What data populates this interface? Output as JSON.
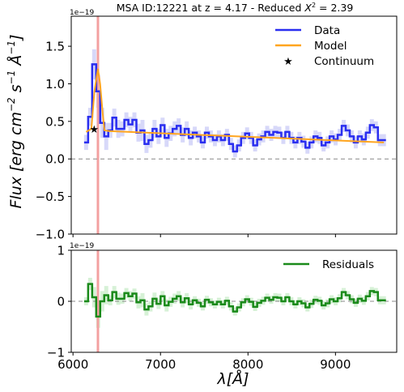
{
  "chart_data": [
    {
      "type": "line",
      "panel": "main",
      "title": "MSA ID:12221 at z = 4.17 - Reduced χ² = 2.39",
      "title_parts": {
        "prefix": "MSA ID:12221 at z = 4.17 - Reduced ",
        "symbol": "X",
        "sup": "2",
        "suffix": " = 2.39"
      },
      "offset_text": {
        "base": "1e",
        "exp": "−19"
      },
      "ylabel": {
        "main": "Flux [erg cm",
        "exp1": "−2",
        "mid": " s",
        "exp2": "−1",
        "mid2": " Å",
        "exp3": "−1",
        "end": "]"
      },
      "xlim": [
        5980,
        9700
      ],
      "ylim": [
        -1.0,
        1.9
      ],
      "yticks": [
        -1.0,
        -0.5,
        0.0,
        0.5,
        1.0,
        1.5
      ],
      "ytick_labels": [
        "−1.0",
        "−0.5",
        "0.0",
        "0.5",
        "1.0",
        "1.5"
      ],
      "legend": [
        "Data",
        "Model",
        "Continuum"
      ],
      "legend_position": "top-right",
      "vline_x": 6285,
      "hline_y": 0.0,
      "colors": {
        "data": "#2a2ef0",
        "error": "#c9cbf7",
        "model": "#ffa51f",
        "vline": "#f3a0a0",
        "hline": "#888888"
      },
      "series": [
        {
          "name": "Data",
          "style": "step",
          "x": [
            6150,
            6196,
            6242,
            6288,
            6334,
            6380,
            6426,
            6472,
            6518,
            6564,
            6610,
            6656,
            6702,
            6748,
            6794,
            6840,
            6886,
            6932,
            6978,
            7024,
            7070,
            7116,
            7162,
            7208,
            7254,
            7300,
            7346,
            7392,
            7438,
            7484,
            7530,
            7576,
            7622,
            7668,
            7714,
            7760,
            7806,
            7852,
            7898,
            7944,
            7990,
            8036,
            8082,
            8128,
            8174,
            8220,
            8266,
            8312,
            8358,
            8404,
            8450,
            8496,
            8542,
            8588,
            8634,
            8680,
            8726,
            8772,
            8818,
            8864,
            8910,
            8956,
            9002,
            9048,
            9094,
            9140,
            9186,
            9232,
            9278,
            9324,
            9370,
            9416,
            9462,
            9508,
            9554
          ],
          "values": [
            0.22,
            0.56,
            1.26,
            0.9,
            0.48,
            0.3,
            0.38,
            0.55,
            0.4,
            0.4,
            0.52,
            0.46,
            0.52,
            0.35,
            0.38,
            0.2,
            0.25,
            0.4,
            0.3,
            0.45,
            0.28,
            0.34,
            0.4,
            0.44,
            0.32,
            0.4,
            0.28,
            0.35,
            0.3,
            0.22,
            0.35,
            0.3,
            0.25,
            0.3,
            0.25,
            0.32,
            0.2,
            0.1,
            0.18,
            0.28,
            0.34,
            0.28,
            0.18,
            0.26,
            0.3,
            0.36,
            0.32,
            0.36,
            0.35,
            0.28,
            0.36,
            0.28,
            0.22,
            0.28,
            0.23,
            0.15,
            0.22,
            0.3,
            0.28,
            0.18,
            0.22,
            0.3,
            0.26,
            0.32,
            0.44,
            0.38,
            0.3,
            0.22,
            0.3,
            0.26,
            0.35,
            0.45,
            0.42,
            0.25,
            0.25
          ]
        },
        {
          "name": "Model",
          "style": "line",
          "x": [
            6150,
            6210,
            6245,
            6285,
            6310,
            6340,
            6360,
            6420,
            9554
          ],
          "values": [
            0.36,
            0.4,
            0.9,
            1.2,
            1.0,
            0.6,
            0.38,
            0.37,
            0.22
          ]
        },
        {
          "name": "Continuum",
          "style": "marker",
          "marker": "star",
          "x": [
            6242
          ],
          "values": [
            0.4
          ]
        }
      ],
      "error_band": {
        "name": "Data uncertainty",
        "offsets": [
          0.1,
          0.12,
          0.2,
          0.22,
          0.2,
          0.18,
          0.1,
          0.12,
          0.12,
          0.1,
          0.1,
          0.1,
          0.1,
          0.12,
          0.14,
          0.12,
          0.1,
          0.12,
          0.1,
          0.1,
          0.12,
          0.1,
          0.1,
          0.1,
          0.1,
          0.1,
          0.1,
          0.08,
          0.08,
          0.08,
          0.08,
          0.08,
          0.08,
          0.08,
          0.08,
          0.08,
          0.08,
          0.08,
          0.08,
          0.08,
          0.08,
          0.08,
          0.08,
          0.08,
          0.08,
          0.08,
          0.08,
          0.08,
          0.08,
          0.08,
          0.08,
          0.08,
          0.08,
          0.08,
          0.08,
          0.08,
          0.08,
          0.08,
          0.08,
          0.08,
          0.08,
          0.08,
          0.08,
          0.08,
          0.08,
          0.08,
          0.08,
          0.08,
          0.08,
          0.08,
          0.08,
          0.08,
          0.08,
          0.08,
          0.08
        ]
      }
    },
    {
      "type": "line",
      "panel": "residuals",
      "offset_text": {
        "base": "1e",
        "exp": "−19"
      },
      "xlabel": {
        "symbol": "λ",
        "unit": "[Å]"
      },
      "xlim": [
        5980,
        9700
      ],
      "ylim": [
        -1.0,
        1.0
      ],
      "xticks": [
        6000,
        7000,
        8000,
        9000
      ],
      "xtick_labels": [
        "6000",
        "7000",
        "8000",
        "9000"
      ],
      "yticks": [
        -1.0,
        0.0,
        1.0
      ],
      "ytick_labels": [
        "−1",
        "0",
        "1"
      ],
      "legend": [
        "Residuals"
      ],
      "legend_position": "top-right",
      "vline_x": 6285,
      "hline_y": 0.0,
      "colors": {
        "residuals": "#1a8a1a",
        "error": "#c8ecc8",
        "vline": "#f3a0a0",
        "hline": "#888888"
      },
      "series": [
        {
          "name": "Residuals",
          "style": "step",
          "x": [
            6150,
            6196,
            6242,
            6288,
            6334,
            6380,
            6426,
            6472,
            6518,
            6564,
            6610,
            6656,
            6702,
            6748,
            6794,
            6840,
            6886,
            6932,
            6978,
            7024,
            7070,
            7116,
            7162,
            7208,
            7254,
            7300,
            7346,
            7392,
            7438,
            7484,
            7530,
            7576,
            7622,
            7668,
            7714,
            7760,
            7806,
            7852,
            7898,
            7944,
            7990,
            8036,
            8082,
            8128,
            8174,
            8220,
            8266,
            8312,
            8358,
            8404,
            8450,
            8496,
            8542,
            8588,
            8634,
            8680,
            8726,
            8772,
            8818,
            8864,
            8910,
            8956,
            9002,
            9048,
            9094,
            9140,
            9186,
            9232,
            9278,
            9324,
            9370,
            9416,
            9462,
            9508,
            9554
          ],
          "values": [
            0.0,
            0.34,
            0.08,
            -0.3,
            0.0,
            0.12,
            0.02,
            0.18,
            0.05,
            0.05,
            0.16,
            0.1,
            0.15,
            -0.02,
            0.02,
            -0.16,
            -0.1,
            0.05,
            -0.05,
            0.1,
            -0.08,
            -0.01,
            0.05,
            0.1,
            -0.02,
            0.06,
            -0.06,
            0.02,
            -0.03,
            -0.1,
            0.03,
            -0.02,
            -0.06,
            -0.01,
            -0.06,
            0.01,
            -0.1,
            -0.2,
            -0.12,
            -0.02,
            0.04,
            -0.01,
            -0.11,
            -0.03,
            0.01,
            0.07,
            0.03,
            0.08,
            0.07,
            0.0,
            0.08,
            0.0,
            -0.06,
            0.0,
            -0.04,
            -0.12,
            -0.05,
            0.03,
            0.01,
            -0.08,
            -0.04,
            0.04,
            0.0,
            0.06,
            0.18,
            0.12,
            0.04,
            -0.03,
            0.05,
            0.01,
            0.1,
            0.2,
            0.18,
            0.02,
            0.02
          ]
        }
      ],
      "error_band": {
        "name": "Residual uncertainty",
        "offsets": [
          0.08,
          0.12,
          0.2,
          0.22,
          0.2,
          0.18,
          0.1,
          0.12,
          0.12,
          0.1,
          0.1,
          0.1,
          0.1,
          0.12,
          0.14,
          0.12,
          0.1,
          0.12,
          0.1,
          0.1,
          0.12,
          0.1,
          0.1,
          0.1,
          0.1,
          0.1,
          0.1,
          0.08,
          0.08,
          0.08,
          0.08,
          0.08,
          0.08,
          0.08,
          0.08,
          0.08,
          0.08,
          0.08,
          0.08,
          0.08,
          0.08,
          0.08,
          0.08,
          0.08,
          0.08,
          0.08,
          0.08,
          0.08,
          0.08,
          0.08,
          0.08,
          0.08,
          0.08,
          0.08,
          0.08,
          0.08,
          0.08,
          0.08,
          0.08,
          0.08,
          0.08,
          0.08,
          0.08,
          0.08,
          0.08,
          0.08,
          0.08,
          0.08,
          0.08,
          0.08,
          0.08,
          0.08,
          0.08,
          0.08,
          0.08
        ]
      }
    }
  ]
}
